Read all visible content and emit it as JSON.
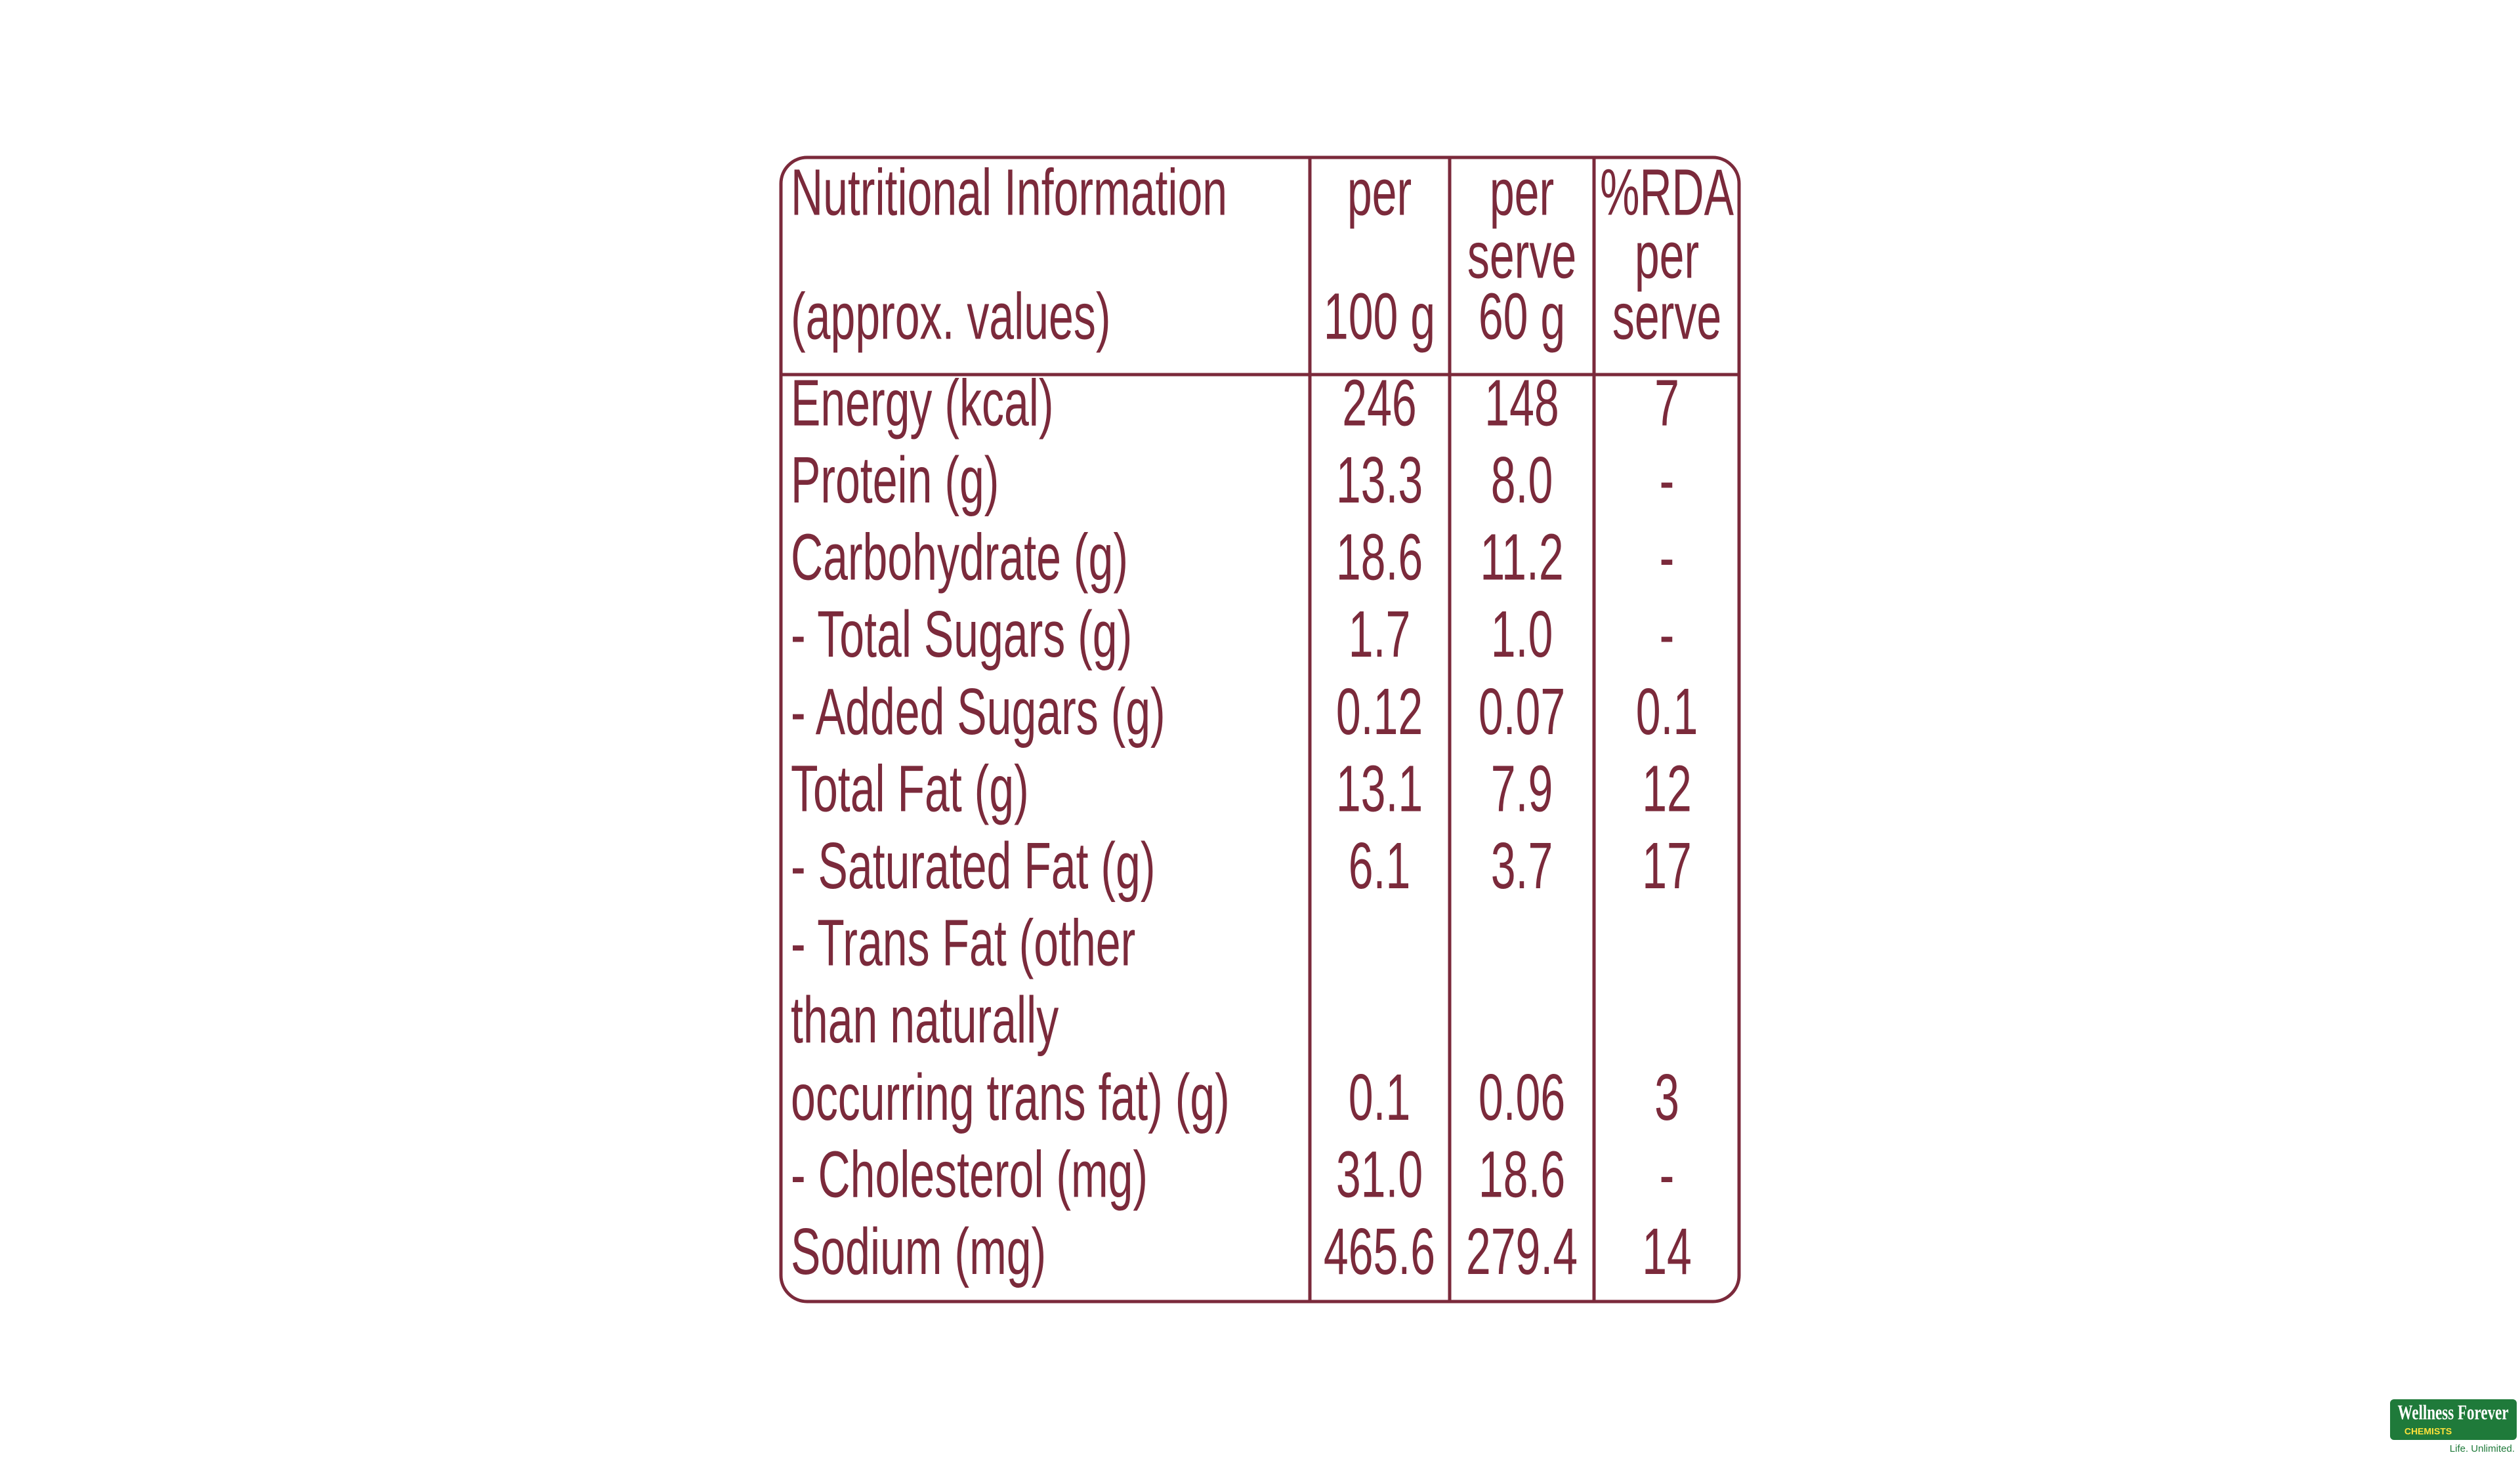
{
  "table": {
    "header": [
      [
        "Nutritional Information",
        "(approx. values)"
      ],
      [
        "per",
        "100 g"
      ],
      [
        "per",
        "serve",
        "60 g"
      ],
      [
        "%RDA",
        "per",
        "serve"
      ]
    ],
    "rows": [
      [
        [
          "Energy (kcal)"
        ],
        "246",
        "148",
        "7"
      ],
      [
        [
          "Protein (g)"
        ],
        "13.3",
        "8.0",
        "-"
      ],
      [
        [
          "Carbohydrate (g)"
        ],
        "18.6",
        "11.2",
        "-"
      ],
      [
        [
          "- Total Sugars (g)"
        ],
        "1.7",
        "1.0",
        "-"
      ],
      [
        [
          "- Added Sugars (g)"
        ],
        "0.12",
        "0.07",
        "0.1"
      ],
      [
        [
          "Total Fat (g)"
        ],
        "13.1",
        "7.9",
        "12"
      ],
      [
        [
          "- Saturated Fat (g)"
        ],
        "6.1",
        "3.7",
        "17"
      ],
      [
        [
          "- Trans Fat (other",
          "than naturally",
          "occurring trans fat) (g)"
        ],
        "0.1",
        "0.06",
        "3"
      ],
      [
        [
          "- Cholesterol (mg)"
        ],
        "31.0",
        "18.6",
        "-"
      ],
      [
        [
          "Sodium (mg)"
        ],
        "465.6",
        "279.4",
        "14"
      ]
    ]
  },
  "logo": {
    "name": "Wellness Forever",
    "subtitle": "CHEMISTS",
    "tagline": "Life. Unlimited."
  }
}
